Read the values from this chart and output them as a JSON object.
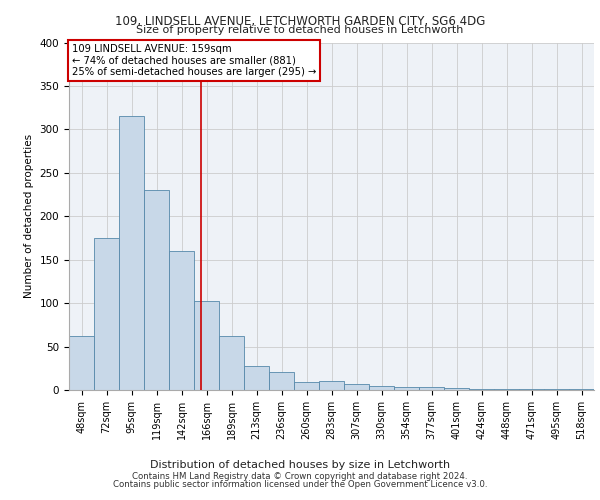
{
  "title1": "109, LINDSELL AVENUE, LETCHWORTH GARDEN CITY, SG6 4DG",
  "title2": "Size of property relative to detached houses in Letchworth",
  "xlabel": "Distribution of detached houses by size in Letchworth",
  "ylabel": "Number of detached properties",
  "categories": [
    "48sqm",
    "72sqm",
    "95sqm",
    "119sqm",
    "142sqm",
    "166sqm",
    "189sqm",
    "213sqm",
    "236sqm",
    "260sqm",
    "283sqm",
    "307sqm",
    "330sqm",
    "354sqm",
    "377sqm",
    "401sqm",
    "424sqm",
    "448sqm",
    "471sqm",
    "495sqm",
    "518sqm"
  ],
  "values": [
    62,
    175,
    315,
    230,
    160,
    103,
    62,
    28,
    21,
    9,
    10,
    7,
    5,
    4,
    3,
    2,
    1,
    1,
    1,
    1,
    1
  ],
  "bar_color": "#c8d8e8",
  "bar_edge_color": "#5588aa",
  "grid_color": "#cccccc",
  "vline_x": 4.78,
  "annotation_text": "109 LINDSELL AVENUE: 159sqm\n← 74% of detached houses are smaller (881)\n25% of semi-detached houses are larger (295) →",
  "annotation_box_color": "#ffffff",
  "annotation_box_edge": "#cc0000",
  "vline_color": "#cc0000",
  "ylim": [
    0,
    400
  ],
  "yticks": [
    0,
    50,
    100,
    150,
    200,
    250,
    300,
    350,
    400
  ],
  "footer1": "Contains HM Land Registry data © Crown copyright and database right 2024.",
  "footer2": "Contains public sector information licensed under the Open Government Licence v3.0.",
  "bg_color": "#eef2f7"
}
